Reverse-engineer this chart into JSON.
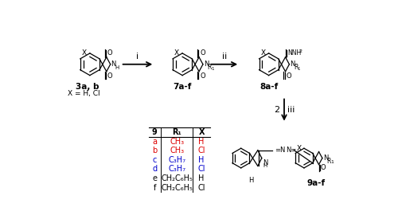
{
  "bg_color": "#ffffff",
  "table": {
    "headers": [
      "9",
      "R₁",
      "X"
    ],
    "rows": [
      {
        "label": "a",
        "R1": "CH₃",
        "X": "H",
        "color": "#dd0000"
      },
      {
        "label": "b",
        "R1": "CH₃",
        "X": "Cl",
        "color": "#dd0000"
      },
      {
        "label": "c",
        "R1": "C₃H₇",
        "X": "H",
        "color": "#0000cc"
      },
      {
        "label": "d",
        "R1": "C₃H₇",
        "X": "Cl",
        "color": "#0000cc"
      },
      {
        "label": "e",
        "R1": "CH₂C₆H₅",
        "X": "H",
        "color": "#000000"
      },
      {
        "label": "f",
        "R1": "CH₂C₆H₅",
        "X": "Cl",
        "color": "#000000"
      }
    ]
  },
  "comp1_label": "3a, b",
  "comp1_sub": "X = H, Cl",
  "comp2_label": "7a-f",
  "comp3_label": "8a-f",
  "comp4_label": "9a-f",
  "arrow1_label": "i",
  "arrow2_label": "ii",
  "arrow3_label": "iii",
  "arrow3_side": "2"
}
